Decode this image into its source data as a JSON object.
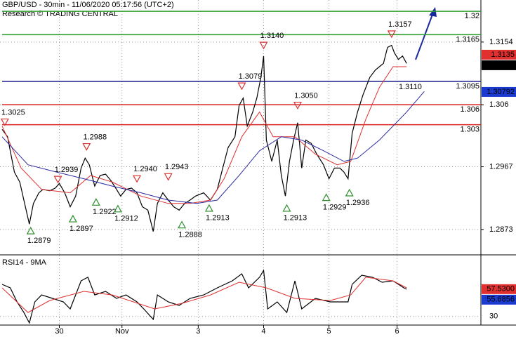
{
  "chart_data": [
    {
      "type": "line",
      "title": "GBP/USD - 30min - 11/06/2020 05:17:56 (UTC+2)",
      "subtitle": "Research © TRADING CENTRAL",
      "xlim": [
        0,
        350
      ],
      "xticks": [
        {
          "value": 42,
          "label": "30"
        },
        {
          "value": 88,
          "label": "Nov"
        },
        {
          "value": 144,
          "label": "3"
        },
        {
          "value": 192,
          "label": "4"
        },
        {
          "value": 240,
          "label": "5"
        },
        {
          "value": 290,
          "label": "6"
        }
      ],
      "ylim": [
        1.2836,
        1.3217
      ],
      "yticks": [
        1.3154,
        1.306,
        1.2967,
        1.2873
      ],
      "grid": true,
      "series": [
        {
          "color": "#000000",
          "x": [
            0,
            4,
            6,
            9,
            13,
            16,
            20,
            23,
            27,
            30,
            35,
            39,
            42,
            46,
            50,
            54,
            58,
            61,
            64,
            68,
            72,
            76,
            80,
            84,
            87,
            91,
            95,
            99,
            103,
            107,
            111,
            114,
            118,
            122,
            126,
            130,
            134,
            138,
            142,
            148,
            153,
            158,
            162,
            166,
            171,
            174,
            177,
            180,
            184,
            187,
            190,
            192,
            194,
            198,
            202,
            205,
            208,
            211,
            214,
            217,
            220,
            223,
            227,
            231,
            236,
            240,
            244,
            248,
            251,
            254,
            257,
            261,
            265,
            270,
            274,
            277,
            280,
            283,
            286,
            288,
            291,
            294,
            297
          ],
          "values": [
            1.3023,
            1.3012,
            1.2991,
            1.2959,
            1.2944,
            1.2917,
            1.2881,
            1.2912,
            1.2928,
            1.2933,
            1.2931,
            1.2935,
            1.2942,
            1.2928,
            1.2907,
            1.2923,
            1.2965,
            1.298,
            1.297,
            1.2938,
            1.2954,
            1.2956,
            1.2946,
            1.2933,
            1.2923,
            1.2933,
            1.2935,
            1.2928,
            1.2907,
            1.2902,
            1.287,
            1.2912,
            1.2928,
            1.2917,
            1.2907,
            1.2902,
            1.2912,
            1.2917,
            1.2923,
            1.2928,
            1.2917,
            1.2933,
            1.2965,
            1.2996,
            1.3012,
            1.3059,
            1.307,
            1.3028,
            1.3049,
            1.307,
            1.3101,
            1.3133,
            1.3007,
            1.2975,
            1.3007,
            1.2954,
            1.2923,
            1.2975,
            1.3007,
            1.3033,
            1.2965,
            1.3007,
            1.3002,
            1.2986,
            1.297,
            1.2949,
            1.2965,
            1.2965,
            1.2959,
            1.2949,
            1.3017,
            1.3049,
            1.3075,
            1.3101,
            1.3112,
            1.3117,
            1.3122,
            1.3146,
            1.3149,
            1.3138,
            1.3128,
            1.3133,
            1.3122
          ]
        },
        {
          "color": "#e03030",
          "x": [
            0,
            14,
            29,
            50,
            65,
            81,
            102,
            122,
            138,
            153,
            163,
            176,
            189,
            199,
            215,
            230,
            246,
            256,
            267,
            277,
            287,
            297
          ],
          "values": [
            1.3028,
            1.2965,
            1.2933,
            1.2928,
            1.2954,
            1.2944,
            1.2923,
            1.2912,
            1.2912,
            1.2917,
            1.2949,
            1.3012,
            1.3049,
            1.3012,
            1.3012,
            1.2986,
            1.297,
            1.2975,
            1.3038,
            1.3086,
            1.3117,
            1.3117
          ]
        },
        {
          "color": "#2a2aa0",
          "x": [
            0,
            19,
            40,
            60,
            81,
            102,
            122,
            143,
            158,
            174,
            189,
            205,
            220,
            236,
            251,
            261,
            277,
            297,
            310
          ],
          "values": [
            1.3012,
            1.297,
            1.2959,
            1.2949,
            1.2938,
            1.2928,
            1.2917,
            1.2912,
            1.2917,
            1.2954,
            1.2991,
            1.3012,
            1.3007,
            1.2991,
            1.2975,
            1.298,
            1.3007,
            1.3049,
            1.308
          ]
        }
      ],
      "levels": {
        "values": [
          1.32,
          1.3165,
          1.3095,
          1.306,
          1.303
        ],
        "colors": [
          "#2e9e2e",
          "#2e9e2e",
          "#1a1a8c",
          "#d82020",
          "#d82020"
        ]
      },
      "swing_highs": {
        "x": [
          2,
          41,
          62,
          99,
          122,
          176,
          192,
          217,
          286
        ],
        "values": [
          1.3025,
          1.2939,
          1.2988,
          1.294,
          1.2943,
          1.3079,
          1.314,
          1.305,
          1.3157
        ],
        "value_labels": [
          "1.3025",
          "1.2939",
          "1.2988",
          "1.2940",
          "1.2943",
          "1.3079",
          "1.3140",
          "1.3050",
          "1.3157"
        ],
        "color": "#d83030"
      },
      "swing_lows": {
        "x": [
          21,
          52,
          69,
          85,
          132,
          152,
          209,
          238,
          255
        ],
        "values": [
          1.2879,
          1.2897,
          1.2922,
          1.2912,
          1.2888,
          1.2913,
          1.2913,
          1.2929,
          1.2936
        ],
        "value_labels": [
          "1.2879",
          "1.2897",
          "1.2922",
          "1.2912",
          "1.2888",
          "1.2913",
          "1.2913",
          "1.2929",
          "1.2936"
        ],
        "color": "#2e8e2e"
      },
      "annotations": [
        "1.3110"
      ],
      "price_markers": {
        "values": [
          1.3135,
          1.3127,
          1.30792
        ],
        "colors": [
          "#e03030",
          "#000000",
          "#1a3ad0"
        ]
      }
    },
    {
      "type": "line",
      "title": "RSI14 - 9MA",
      "ylim": [
        22,
        90
      ],
      "yticks": [
        30
      ],
      "series": [
        {
          "color": "#000000",
          "x": [
            0,
            6,
            11,
            16,
            20,
            24,
            29,
            37,
            45,
            50,
            58,
            63,
            68,
            76,
            84,
            91,
            99,
            104,
            111,
            114,
            122,
            130,
            138,
            148,
            158,
            169,
            176,
            181,
            189,
            192,
            195,
            202,
            209,
            215,
            220,
            230,
            241,
            254,
            257,
            264,
            272,
            279,
            287,
            295,
            297
          ],
          "values": [
            62.4,
            58.8,
            44.7,
            34.0,
            23.4,
            44.7,
            51.7,
            48.2,
            44.7,
            37.6,
            65.9,
            69.5,
            51.7,
            55.3,
            48.2,
            51.7,
            44.7,
            37.6,
            27.0,
            51.7,
            44.7,
            41.1,
            48.2,
            51.7,
            58.8,
            65.9,
            73.0,
            58.8,
            69.5,
            76.5,
            37.6,
            44.7,
            34.0,
            65.9,
            37.6,
            48.2,
            44.7,
            44.7,
            62.4,
            71.6,
            69.5,
            64.5,
            65.9,
            58.8,
            57.4
          ]
        },
        {
          "color": "#e03030",
          "x": [
            0,
            19,
            35,
            60,
            81,
            112,
            132,
            153,
            174,
            194,
            215,
            241,
            256,
            267,
            287,
            297
          ],
          "values": [
            58.8,
            34.0,
            46.1,
            55.3,
            51.7,
            37.6,
            43.2,
            51.7,
            64.5,
            58.8,
            48.2,
            46.1,
            51.7,
            69.5,
            65.9,
            58.8
          ]
        }
      ],
      "markers": {
        "values": [
          57.53,
          55.6856
        ],
        "value_labels": [
          "57.5300",
          "55.6856"
        ],
        "colors": [
          "#e03030",
          "#1a3ad0"
        ]
      }
    }
  ]
}
